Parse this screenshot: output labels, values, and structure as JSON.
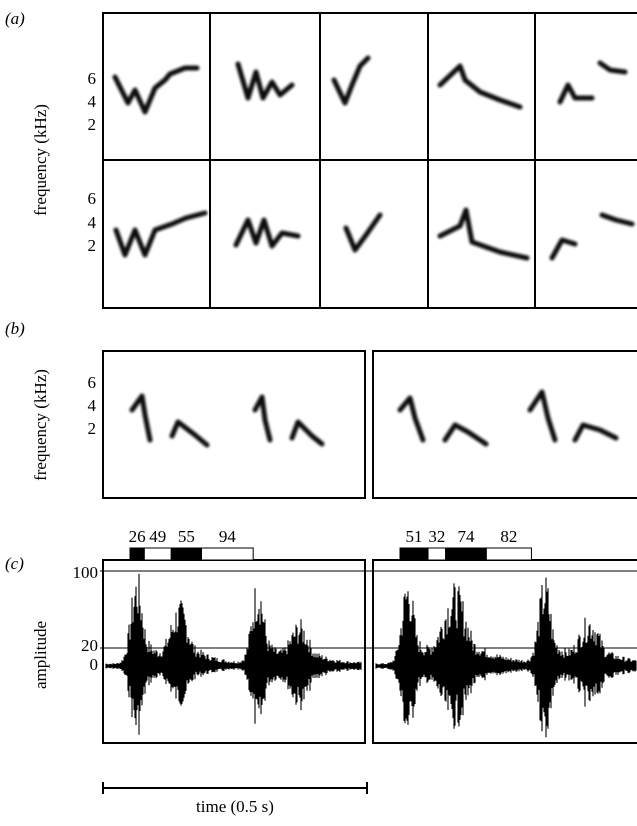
{
  "figure": {
    "panel_a": {
      "label": "(a)",
      "y_label": "frequency (kHz)",
      "rows": [
        {
          "yticks": [
            6,
            4,
            2
          ]
        },
        {
          "yticks": [
            6,
            4,
            2
          ]
        }
      ]
    },
    "panel_b": {
      "label": "(b)",
      "y_label": "frequency (kHz)",
      "yticks": [
        6,
        4,
        2
      ]
    },
    "panel_c": {
      "label": "(c)",
      "y_label": "amplitude",
      "yticks": [
        100,
        20,
        0
      ],
      "segments": [
        [
          26,
          49,
          55,
          94
        ],
        [
          51,
          32,
          74,
          82
        ]
      ]
    },
    "x_label": "time (0.5 s)"
  }
}
